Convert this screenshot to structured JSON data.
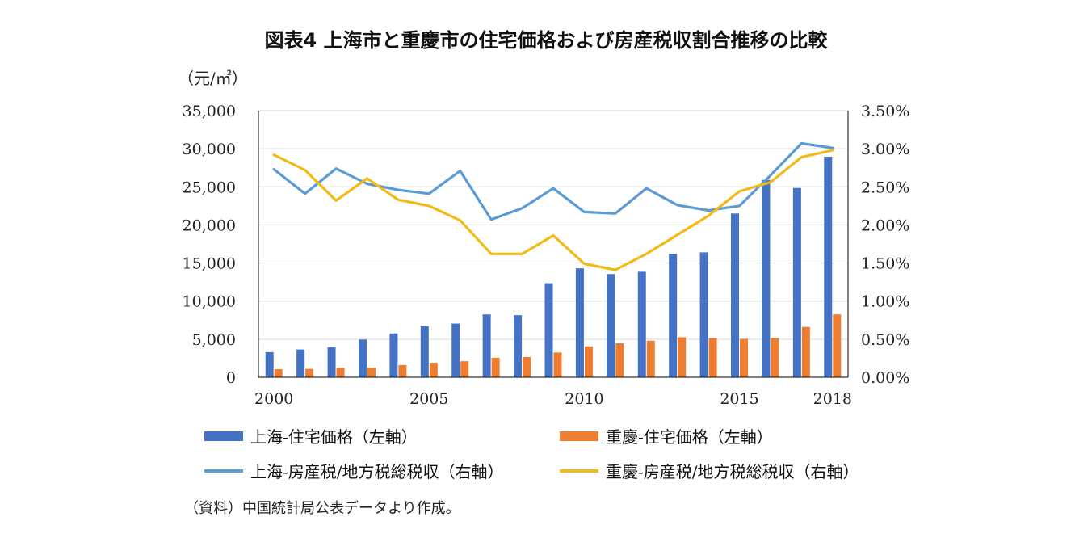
{
  "chart_data": {
    "type": "bar+line",
    "title": "図表4 上海市と重慶市の住宅価格および房産税収割合推移の比較",
    "y_left_unit": "（元/㎡）",
    "x": [
      2000,
      2001,
      2002,
      2003,
      2004,
      2005,
      2006,
      2007,
      2008,
      2009,
      2010,
      2011,
      2012,
      2013,
      2014,
      2015,
      2016,
      2017,
      2018
    ],
    "x_tick_labels": [
      "2000",
      "2005",
      "2010",
      "2015",
      "2018"
    ],
    "x_tick_values": [
      2000,
      2005,
      2010,
      2015,
      2018
    ],
    "y_left_ticks": [
      "0",
      "5,000",
      "10,000",
      "15,000",
      "20,000",
      "25,000",
      "30,000",
      "35,000"
    ],
    "y_left_range": [
      0,
      35000
    ],
    "y_right_ticks": [
      "0.00%",
      "0.50%",
      "1.00%",
      "1.50%",
      "2.00%",
      "2.50%",
      "3.00%",
      "3.50%"
    ],
    "y_right_range": [
      0,
      3.5
    ],
    "grid": true,
    "legend_position": "bottom",
    "series": [
      {
        "name": "上海-住宅価格（左軸）",
        "kind": "bar",
        "axis": "left",
        "color": "#4472C4",
        "values": [
          3300,
          3650,
          3950,
          4950,
          5750,
          6700,
          7050,
          8250,
          8150,
          12350,
          14300,
          13550,
          13850,
          16200,
          16400,
          21500,
          25900,
          24850,
          28950
        ]
      },
      {
        "name": "重慶-住宅価格（左軸）",
        "kind": "bar",
        "axis": "left",
        "color": "#ED7D31",
        "values": [
          1050,
          1100,
          1250,
          1250,
          1600,
          1900,
          2100,
          2550,
          2650,
          3250,
          4050,
          4450,
          4800,
          5250,
          5150,
          5050,
          5150,
          6600,
          8250
        ]
      },
      {
        "name": "上海-房産税/地方税総税収（右軸）",
        "kind": "line",
        "axis": "right",
        "color": "#5B9BD5",
        "values": [
          2.73,
          2.41,
          2.74,
          2.54,
          2.46,
          2.41,
          2.71,
          2.07,
          2.22,
          2.48,
          2.17,
          2.15,
          2.48,
          2.26,
          2.19,
          2.25,
          2.65,
          3.07,
          3.01
        ]
      },
      {
        "name": "重慶-房産税/地方税総税収（右軸）",
        "kind": "line",
        "axis": "right",
        "color": "#F2BA16",
        "values": [
          2.92,
          2.72,
          2.32,
          2.61,
          2.33,
          2.25,
          2.06,
          1.62,
          1.62,
          1.86,
          1.49,
          1.41,
          1.62,
          1.87,
          2.12,
          2.44,
          2.56,
          2.89,
          2.98
        ]
      }
    ],
    "note": "（資料）中国統計局公表データより作成。"
  }
}
